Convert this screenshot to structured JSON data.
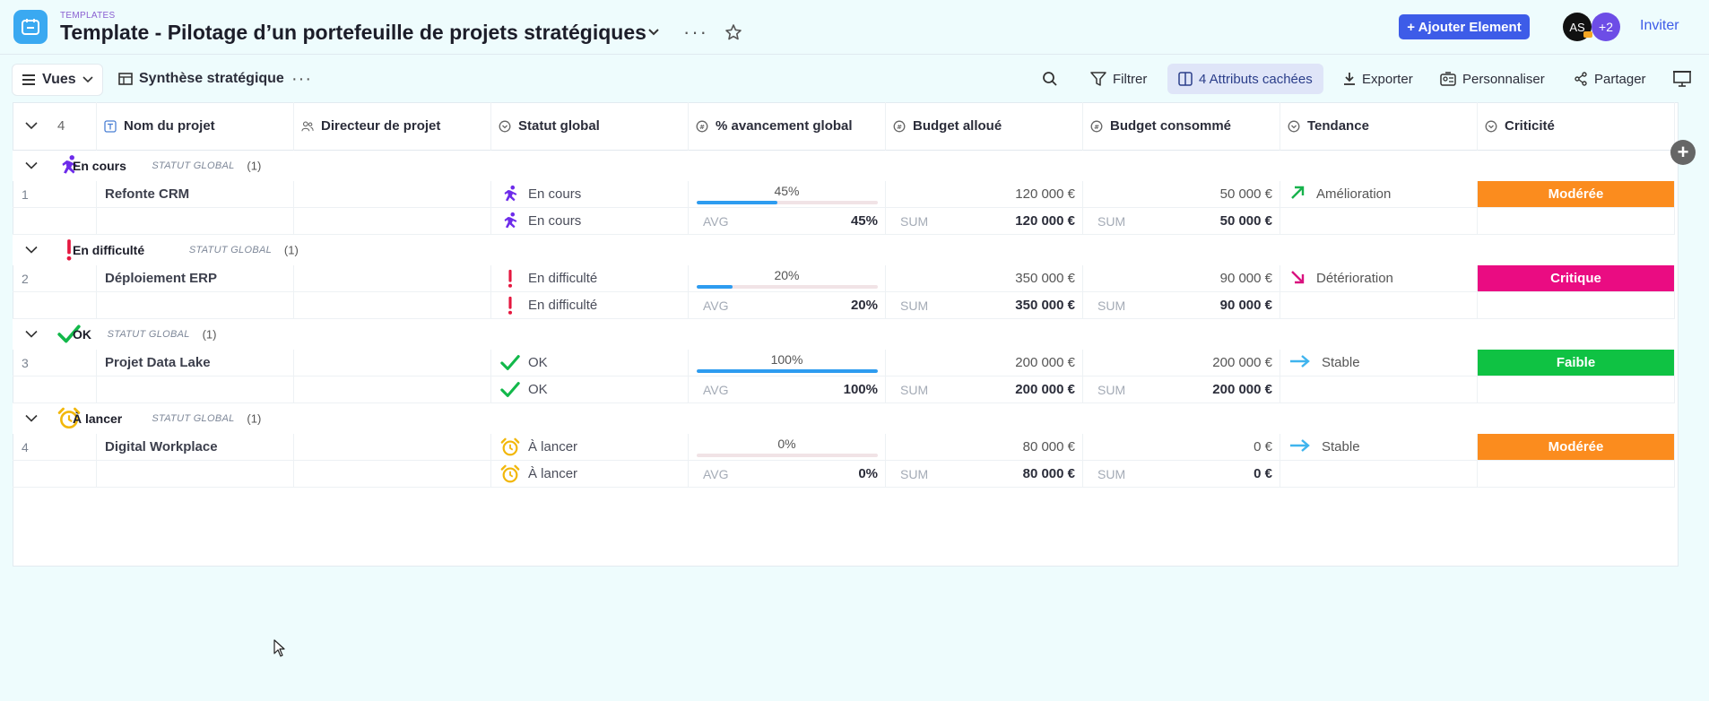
{
  "header": {
    "crumb": "TEMPLATES",
    "title": "Template - Pilotage d’un portefeuille de projets stratégiques",
    "add_button": "+ Ajouter Element",
    "avatar_initials": "AS",
    "avatar_more": "+2",
    "invite": "Inviter"
  },
  "toolbar": {
    "views": "Vues",
    "view_name": "Synthèse stratégique",
    "filter": "Filtrer",
    "hidden_attributes": "4 Attributs cachées",
    "export": "Exporter",
    "customize": "Personnaliser",
    "share": "Partager"
  },
  "table": {
    "row_count": "4",
    "columns": {
      "name": "Nom du projet",
      "director": "Directeur de projet",
      "status": "Statut global",
      "progress": "% avancement global",
      "budget": "Budget alloué",
      "consumed": "Budget consommé",
      "trend": "Tendance",
      "criticality": "Criticité"
    },
    "group_label": "STATUT GLOBAL",
    "avg_label": "AVG",
    "sum_label": "SUM",
    "groups": [
      {
        "name": "En cours",
        "count": "(1)",
        "icon": "running-icon",
        "row": {
          "num": "1",
          "name": "Refonte CRM",
          "director": "",
          "status": "En cours",
          "progress_label": "45%",
          "progress": 0.45,
          "budget": "120 000 €",
          "consumed": "50 000 €",
          "trend": "Amélioration",
          "trend_icon": "arrow-up-right-icon",
          "criticality": "Modérée",
          "crit_color": "#fb8c1e"
        },
        "summary": {
          "status": "En cours",
          "avg": "45%",
          "budget_sum": "120 000 €",
          "consumed_sum": "50 000 €"
        }
      },
      {
        "name": "En difficulté",
        "count": "(1)",
        "icon": "exclamation-icon",
        "row": {
          "num": "2",
          "name": "Déploiement ERP",
          "director": "",
          "status": "En difficulté",
          "progress_label": "20%",
          "progress": 0.2,
          "budget": "350 000 €",
          "consumed": "90 000 €",
          "trend": "Détérioration",
          "trend_icon": "arrow-down-right-icon",
          "criticality": "Critique",
          "crit_color": "#ea0c82"
        },
        "summary": {
          "status": "En difficulté",
          "avg": "20%",
          "budget_sum": "350 000 €",
          "consumed_sum": "90 000 €"
        }
      },
      {
        "name": "OK",
        "count": "(1)",
        "icon": "check-icon",
        "row": {
          "num": "3",
          "name": "Projet Data Lake",
          "director": "",
          "status": "OK",
          "progress_label": "100%",
          "progress": 1.0,
          "budget": "200 000 €",
          "consumed": "200 000 €",
          "trend": "Stable",
          "trend_icon": "arrow-right-icon",
          "criticality": "Faible",
          "crit_color": "#0fc243"
        },
        "summary": {
          "status": "OK",
          "avg": "100%",
          "budget_sum": "200 000 €",
          "consumed_sum": "200 000 €"
        }
      },
      {
        "name": "À lancer",
        "count": "(1)",
        "icon": "alarm-clock-icon",
        "row": {
          "num": "4",
          "name": "Digital Workplace",
          "director": "",
          "status": "À lancer",
          "progress_label": "0%",
          "progress": 0.0,
          "budget": "80 000 €",
          "consumed": "0 €",
          "trend": "Stable",
          "trend_icon": "arrow-right-icon",
          "criticality": "Modérée",
          "crit_color": "#fb8c1e"
        },
        "summary": {
          "status": "À lancer",
          "avg": "0%",
          "budget_sum": "80 000 €",
          "consumed_sum": "0 €"
        }
      }
    ]
  },
  "colors": {
    "accent": "#3d5ce8",
    "progress": "#2d9cf0",
    "running": "#6d2bea",
    "difficulty": "#e5173f",
    "ok": "#12b84a",
    "launch": "#f2b70a"
  }
}
